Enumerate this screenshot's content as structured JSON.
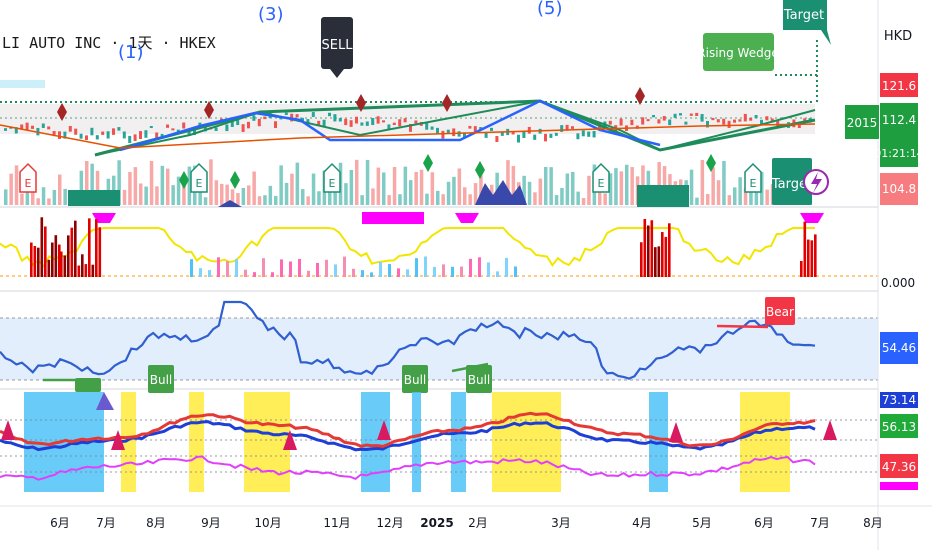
{
  "header": {
    "symbol_line": "LI AUTO INC · 1天 · HKEX",
    "wave_labels": [
      "(1)",
      "(3)",
      "(5)"
    ]
  },
  "currency": "HKD",
  "price_axis": {
    "badges": [
      {
        "text": "121.6",
        "color": "#f23645"
      },
      {
        "text": "2015",
        "color": "#1e9e3e"
      },
      {
        "text": "112.4",
        "color": "#1e9e3e"
      },
      {
        "text": "01:21:14",
        "color": "#1e9e3e"
      },
      {
        "text": "104.8",
        "color": "#f77c80"
      }
    ]
  },
  "annotations": {
    "sell": "SELL",
    "rising_wedge": "Rising Wedge",
    "target": "Target",
    "bear": "Bear",
    "bull": "Bull",
    "earnings": "E"
  },
  "colors": {
    "up": "#26a69a",
    "down": "#ef5350",
    "trend_green": "#1e8c5a",
    "trend_blue": "#2962ff",
    "rsi_line": "#2f5fd0",
    "magenta": "#ff00ff",
    "yellow_band": "#ffeb3b",
    "cyan_band": "#4fc3f7"
  },
  "chart_data": [
    {
      "type": "line",
      "name": "price",
      "x_ticks": [
        "6月",
        "7月",
        "8月",
        "9月",
        "10月",
        "11月",
        "12月",
        "2025",
        "2月",
        "3月",
        "4月",
        "5月",
        "6月",
        "7月",
        "8月"
      ],
      "y_ticks": [
        121.6,
        112.4,
        104.8
      ],
      "last_value": 112.4
    },
    {
      "type": "bar",
      "name": "oscillator",
      "y_ticks": [
        "0.000"
      ]
    },
    {
      "type": "line",
      "name": "rsi",
      "last_value": 54.46,
      "bull_labels": 3,
      "bear_labels": 1
    },
    {
      "type": "line",
      "name": "stochastic_bands",
      "axis_labels": [
        "73.14",
        "56.13",
        "47.36"
      ],
      "series": [
        {
          "color": "#e53935"
        },
        {
          "color": "#1e3fd6"
        },
        {
          "color": "#e040fb"
        }
      ]
    }
  ]
}
